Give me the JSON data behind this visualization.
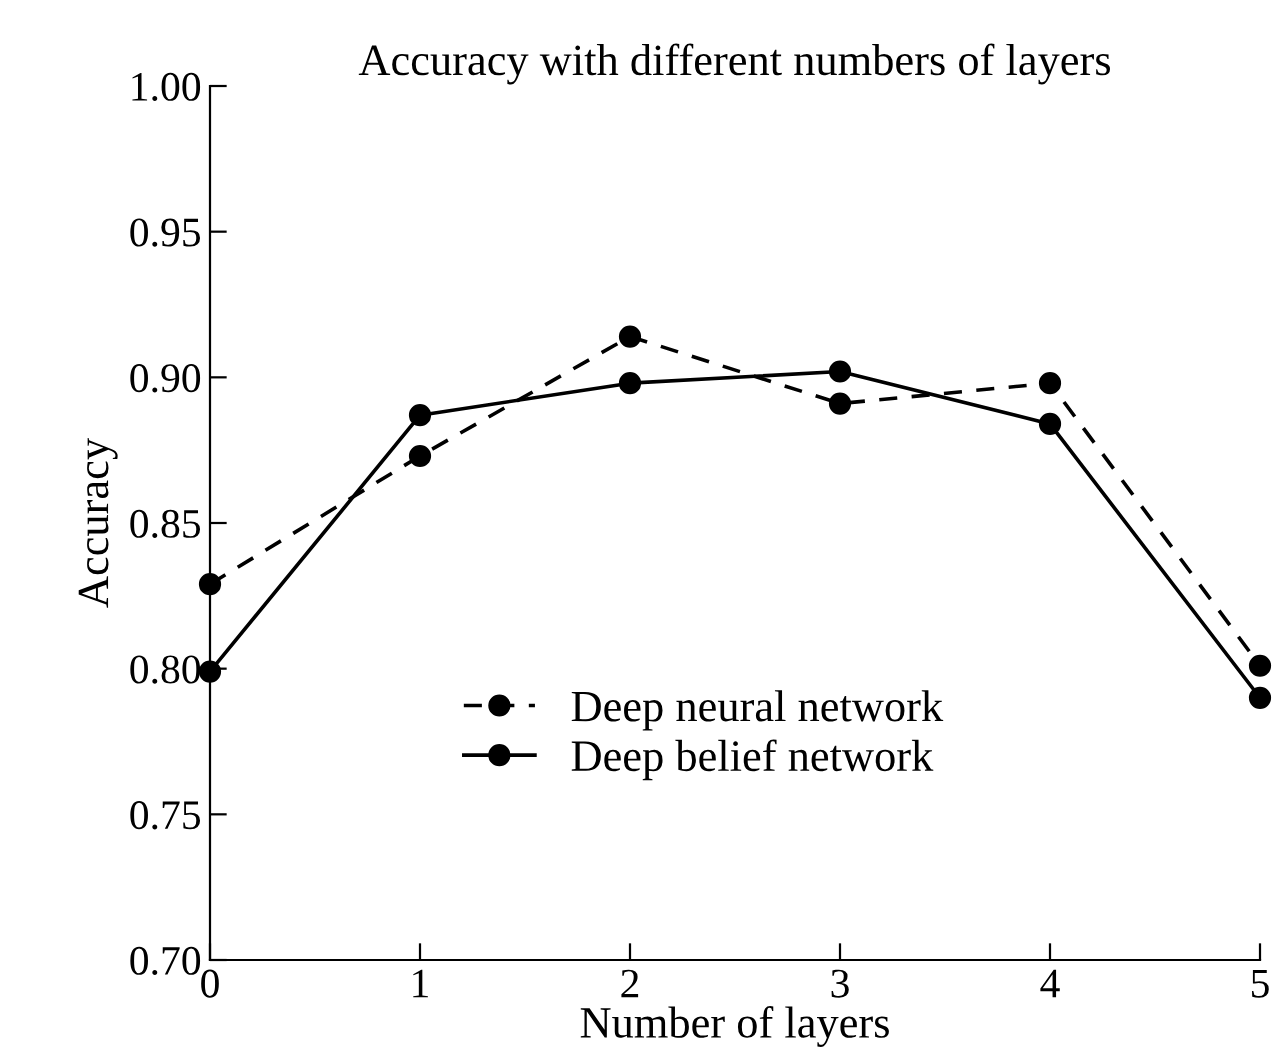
{
  "chart_data": {
    "type": "line",
    "title": "Accuracy with different numbers of layers",
    "xlabel": "Number of layers",
    "ylabel": "Accuracy",
    "x": [
      0,
      1,
      2,
      3,
      4,
      5
    ],
    "series": [
      {
        "name": "Deep neural network",
        "color": "#000000",
        "line_style": "dashed",
        "values": [
          0.829,
          0.873,
          0.914,
          0.891,
          0.898,
          0.801
        ]
      },
      {
        "name": "Deep belief network",
        "color": "#000000",
        "line_style": "solid",
        "values": [
          0.799,
          0.887,
          0.898,
          0.902,
          0.884,
          0.79
        ]
      }
    ],
    "marker": "circle",
    "xlim": [
      0,
      5
    ],
    "xticks": [
      0,
      1,
      2,
      3,
      4,
      5
    ],
    "ylim": [
      0.7,
      1.0
    ],
    "yticks": [
      {
        "value": 0.7,
        "label": "0.70"
      },
      {
        "value": 0.75,
        "label": "0.75"
      },
      {
        "value": 0.8,
        "label": "0.80"
      },
      {
        "value": 0.85,
        "label": "0.85"
      },
      {
        "value": 0.9,
        "label": "0.90"
      },
      {
        "value": 0.95,
        "label": "0.95"
      },
      {
        "value": 1.0,
        "label": "1.00"
      }
    ],
    "grid": false,
    "legend": "bottom"
  }
}
